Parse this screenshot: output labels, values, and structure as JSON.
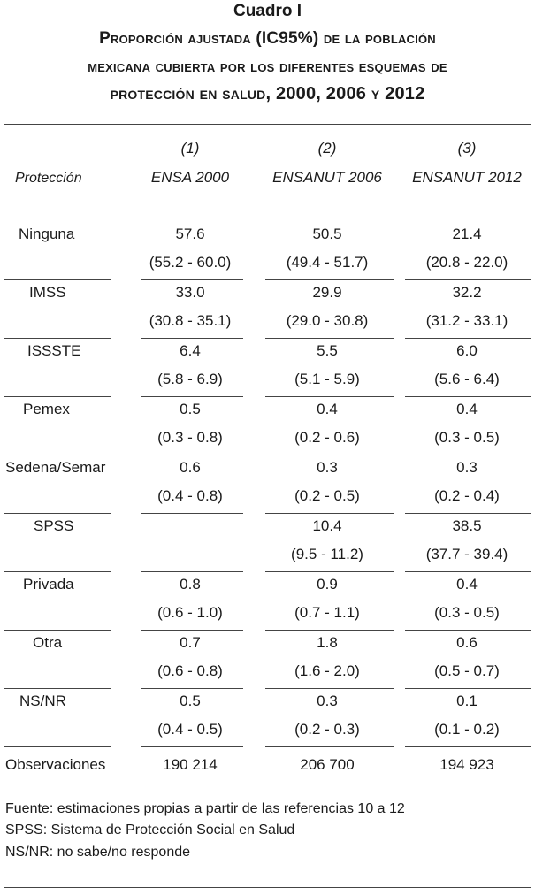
{
  "title": {
    "number": "Cuadro I",
    "line1": "Proporción ajustada (IC95%) de la población",
    "line2": "mexicana cubierta por los diferentes esquemas de",
    "line3": "protección en salud, 2000, 2006 y 2012"
  },
  "columns": {
    "row_header": "Protección",
    "items": [
      {
        "num": "(1)",
        "name": "ENSA 2000"
      },
      {
        "num": "(2)",
        "name": "ENSANUT 2006"
      },
      {
        "num": "(3)",
        "name": "ENSANUT 2012"
      }
    ]
  },
  "rows": [
    {
      "label": "Ninguna",
      "values": [
        "57.6",
        "50.5",
        "21.4"
      ],
      "ci": [
        "(55.2 - 60.0)",
        "(49.4 - 51.7)",
        "(20.8 - 22.0)"
      ]
    },
    {
      "label": "IMSS",
      "values": [
        "33.0",
        "29.9",
        "32.2"
      ],
      "ci": [
        "(30.8 - 35.1)",
        "(29.0 - 30.8)",
        "(31.2 - 33.1)"
      ]
    },
    {
      "label": "ISSSTE",
      "values": [
        "6.4",
        "5.5",
        "6.0"
      ],
      "ci": [
        "(5.8 - 6.9)",
        "(5.1 - 5.9)",
        "(5.6 - 6.4)"
      ]
    },
    {
      "label": "Pemex",
      "values": [
        "0.5",
        "0.4",
        "0.4"
      ],
      "ci": [
        "(0.3 - 0.8)",
        "(0.2 - 0.6)",
        "(0.3 - 0.5)"
      ]
    },
    {
      "label": "Sedena/Semar",
      "values": [
        "0.6",
        "0.3",
        "0.3"
      ],
      "ci": [
        "(0.4 - 0.8)",
        "(0.2 - 0.5)",
        "(0.2 - 0.4)"
      ]
    },
    {
      "label": "SPSS",
      "values": [
        "",
        "10.4",
        "38.5"
      ],
      "ci": [
        "",
        "(9.5 - 11.2)",
        "(37.7 - 39.4)"
      ]
    },
    {
      "label": "Privada",
      "values": [
        "0.8",
        "0.9",
        "0.4"
      ],
      "ci": [
        "(0.6 - 1.0)",
        "(0.7 - 1.1)",
        "(0.3 - 0.5)"
      ]
    },
    {
      "label": "Otra",
      "values": [
        "0.7",
        "1.8",
        "0.6"
      ],
      "ci": [
        "(0.6 - 0.8)",
        "(1.6 - 2.0)",
        "(0.5 - 0.7)"
      ]
    },
    {
      "label": "NS/NR",
      "values": [
        "0.5",
        "0.3",
        "0.1"
      ],
      "ci": [
        "(0.4 - 0.5)",
        "(0.2 - 0.3)",
        "(0.1 - 0.2)"
      ]
    }
  ],
  "observations": {
    "label": "Observaciones",
    "values": [
      "190 214",
      "206 700",
      "194 923"
    ]
  },
  "footnotes": [
    "Fuente: estimaciones propias a partir de las referencias 10 a 12",
    "SPSS: Sistema de Protección Social en Salud",
    "NS/NR: no sabe/no responde"
  ]
}
